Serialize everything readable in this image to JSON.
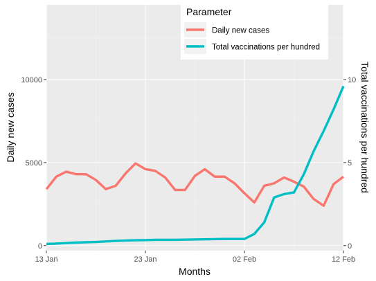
{
  "chart_data": {
    "type": "line",
    "x_dates": [
      "2021-01-13",
      "2021-01-14",
      "2021-01-15",
      "2021-01-16",
      "2021-01-17",
      "2021-01-18",
      "2021-01-19",
      "2021-01-20",
      "2021-01-21",
      "2021-01-22",
      "2021-01-23",
      "2021-01-24",
      "2021-01-25",
      "2021-01-26",
      "2021-01-27",
      "2021-01-28",
      "2021-01-29",
      "2021-01-30",
      "2021-01-31",
      "2021-02-01",
      "2021-02-02",
      "2021-02-03",
      "2021-02-04",
      "2021-02-05",
      "2021-02-06",
      "2021-02-07",
      "2021-02-08",
      "2021-02-09",
      "2021-02-10",
      "2021-02-11",
      "2021-02-12"
    ],
    "x_tick_labels": [
      "13 Jan",
      "23 Jan",
      "02 Feb",
      "12 Feb"
    ],
    "x_tick_dates": [
      "2021-01-13",
      "2021-01-23",
      "2021-02-02",
      "2021-02-12"
    ],
    "xlabel": "Months",
    "ylabel_left": "Daily new cases",
    "ylabel_right": "Total vaccinations per hundred",
    "ylim_left": [
      -300,
      14500
    ],
    "ylim_right": [
      -0.3,
      14.5
    ],
    "y_ticks_left": [
      0,
      5000,
      10000
    ],
    "y_ticks_right": [
      0,
      5,
      10
    ],
    "grid": true,
    "legend_title": "Parameter",
    "legend_position": "top-right",
    "series": [
      {
        "name": "Daily new cases",
        "axis": "left",
        "color": "#F8766D",
        "values": [
          3400,
          4150,
          4450,
          4300,
          4300,
          3950,
          3400,
          3600,
          4350,
          4950,
          4600,
          4500,
          4100,
          3350,
          3350,
          4200,
          4600,
          4150,
          4150,
          3750,
          3150,
          2600,
          3600,
          3750,
          4100,
          3850,
          3550,
          2800,
          2400,
          3700,
          4150
        ]
      },
      {
        "name": "Total vaccinations per hundred",
        "axis": "right",
        "color": "#00BFC4",
        "values": [
          0.1,
          0.12,
          0.15,
          0.18,
          0.2,
          0.22,
          0.25,
          0.28,
          0.3,
          0.32,
          0.33,
          0.35,
          0.35,
          0.35,
          0.36,
          0.37,
          0.38,
          0.39,
          0.4,
          0.4,
          0.4,
          0.7,
          1.4,
          2.9,
          3.1,
          3.2,
          4.3,
          5.7,
          6.9,
          8.2,
          9.6
        ]
      }
    ]
  }
}
